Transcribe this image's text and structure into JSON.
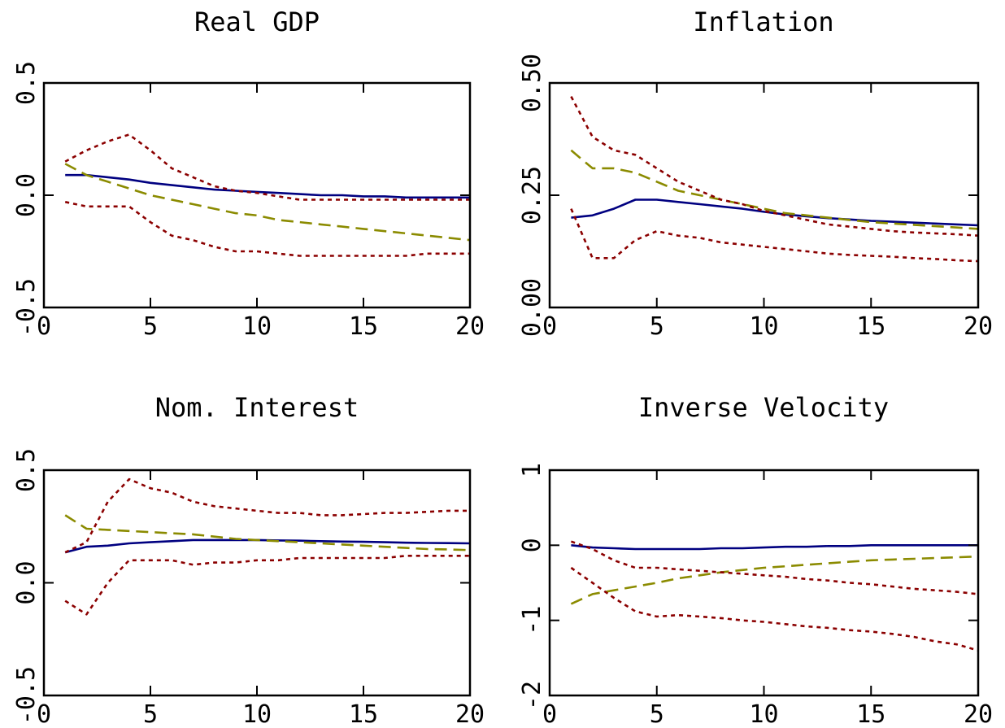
{
  "chart_data": [
    {
      "type": "line",
      "title": "Real GDP",
      "xlim": [
        0,
        20
      ],
      "ylim": [
        -0.5,
        0.5
      ],
      "xticks": [
        0,
        5,
        10,
        15,
        20
      ],
      "xtick_labels": [
        "0",
        "5",
        "10",
        "15",
        "20"
      ],
      "yticks": [
        -0.5,
        0.0,
        0.5
      ],
      "ytick_labels": [
        "-0.5",
        "0.0",
        "0.5"
      ],
      "x": [
        1,
        2,
        3,
        4,
        5,
        6,
        7,
        8,
        9,
        10,
        11,
        12,
        13,
        14,
        15,
        16,
        17,
        18,
        19,
        20
      ],
      "series": [
        {
          "values": [
            0.09,
            0.09,
            0.08,
            0.07,
            0.055,
            0.045,
            0.035,
            0.025,
            0.02,
            0.015,
            0.01,
            0.005,
            0.0,
            0.0,
            -0.005,
            -0.005,
            -0.01,
            -0.01,
            -0.01,
            -0.01
          ],
          "color": "#000080",
          "dash": "solid"
        },
        {
          "values": [
            0.14,
            0.09,
            0.06,
            0.03,
            0.0,
            -0.02,
            -0.04,
            -0.06,
            -0.08,
            -0.09,
            -0.11,
            -0.12,
            -0.13,
            -0.14,
            -0.15,
            -0.16,
            -0.17,
            -0.18,
            -0.19,
            -0.2
          ],
          "color": "#8B8B00",
          "dash": "long"
        },
        {
          "values": [
            0.15,
            0.2,
            0.24,
            0.27,
            0.2,
            0.12,
            0.08,
            0.04,
            0.02,
            0.01,
            -0.005,
            -0.02,
            -0.02,
            -0.02,
            -0.02,
            -0.02,
            -0.02,
            -0.02,
            -0.02,
            -0.02
          ],
          "color": "#8B0000",
          "dash": "short"
        },
        {
          "values": [
            -0.03,
            -0.05,
            -0.05,
            -0.05,
            -0.12,
            -0.18,
            -0.2,
            -0.23,
            -0.25,
            -0.25,
            -0.26,
            -0.27,
            -0.27,
            -0.27,
            -0.27,
            -0.27,
            -0.27,
            -0.26,
            -0.26,
            -0.26
          ],
          "color": "#8B0000",
          "dash": "short"
        }
      ]
    },
    {
      "type": "line",
      "title": "Inflation",
      "xlim": [
        0,
        20
      ],
      "ylim": [
        0.0,
        0.5
      ],
      "xticks": [
        0,
        5,
        10,
        15,
        20
      ],
      "xtick_labels": [
        "0",
        "5",
        "10",
        "15",
        "20"
      ],
      "yticks": [
        0.0,
        0.25,
        0.5
      ],
      "ytick_labels": [
        "0.00",
        "0.25",
        "0.50"
      ],
      "x": [
        1,
        2,
        3,
        4,
        5,
        6,
        7,
        8,
        9,
        10,
        11,
        12,
        13,
        14,
        15,
        16,
        17,
        18,
        19,
        20
      ],
      "series": [
        {
          "values": [
            0.2,
            0.205,
            0.22,
            0.24,
            0.24,
            0.235,
            0.23,
            0.225,
            0.22,
            0.213,
            0.207,
            0.203,
            0.199,
            0.196,
            0.193,
            0.191,
            0.189,
            0.187,
            0.185,
            0.183
          ],
          "color": "#000080",
          "dash": "solid"
        },
        {
          "values": [
            0.35,
            0.31,
            0.31,
            0.3,
            0.28,
            0.26,
            0.25,
            0.24,
            0.23,
            0.22,
            0.21,
            0.205,
            0.2,
            0.195,
            0.19,
            0.187,
            0.184,
            0.181,
            0.178,
            0.175
          ],
          "color": "#8B8B00",
          "dash": "long"
        },
        {
          "values": [
            0.47,
            0.38,
            0.35,
            0.34,
            0.31,
            0.28,
            0.26,
            0.24,
            0.23,
            0.215,
            0.205,
            0.195,
            0.185,
            0.18,
            0.175,
            0.17,
            0.167,
            0.165,
            0.163,
            0.16
          ],
          "color": "#8B0000",
          "dash": "short"
        },
        {
          "values": [
            0.22,
            0.11,
            0.11,
            0.15,
            0.17,
            0.16,
            0.155,
            0.145,
            0.14,
            0.135,
            0.13,
            0.125,
            0.12,
            0.117,
            0.115,
            0.113,
            0.11,
            0.108,
            0.105,
            0.103
          ],
          "color": "#8B0000",
          "dash": "short"
        }
      ]
    },
    {
      "type": "line",
      "title": "Nom. Interest",
      "xlim": [
        0,
        20
      ],
      "ylim": [
        -0.5,
        0.5
      ],
      "xticks": [
        0,
        5,
        10,
        15,
        20
      ],
      "xtick_labels": [
        "0",
        "5",
        "10",
        "15",
        "20"
      ],
      "yticks": [
        -0.5,
        0.0,
        0.5
      ],
      "ytick_labels": [
        "-0.5",
        "0.0",
        "0.5"
      ],
      "x": [
        1,
        2,
        3,
        4,
        5,
        6,
        7,
        8,
        9,
        10,
        11,
        12,
        13,
        14,
        15,
        16,
        17,
        18,
        19,
        20
      ],
      "series": [
        {
          "values": [
            0.135,
            0.16,
            0.165,
            0.175,
            0.18,
            0.185,
            0.19,
            0.19,
            0.19,
            0.19,
            0.188,
            0.187,
            0.185,
            0.183,
            0.182,
            0.18,
            0.178,
            0.177,
            0.176,
            0.175
          ],
          "color": "#000080",
          "dash": "solid"
        },
        {
          "values": [
            0.3,
            0.24,
            0.235,
            0.23,
            0.225,
            0.22,
            0.215,
            0.205,
            0.195,
            0.19,
            0.185,
            0.18,
            0.175,
            0.17,
            0.165,
            0.16,
            0.155,
            0.15,
            0.148,
            0.145
          ],
          "color": "#8B8B00",
          "dash": "long"
        },
        {
          "values": [
            0.135,
            0.18,
            0.36,
            0.46,
            0.42,
            0.4,
            0.36,
            0.34,
            0.33,
            0.32,
            0.31,
            0.31,
            0.3,
            0.3,
            0.305,
            0.31,
            0.31,
            0.315,
            0.32,
            0.32
          ],
          "color": "#8B0000",
          "dash": "short"
        },
        {
          "values": [
            -0.08,
            -0.14,
            0.0,
            0.1,
            0.1,
            0.1,
            0.08,
            0.09,
            0.09,
            0.1,
            0.1,
            0.11,
            0.11,
            0.11,
            0.11,
            0.11,
            0.12,
            0.12,
            0.12,
            0.12
          ],
          "color": "#8B0000",
          "dash": "short"
        }
      ]
    },
    {
      "type": "line",
      "title": "Inverse Velocity",
      "xlim": [
        0,
        20
      ],
      "ylim": [
        -2,
        1
      ],
      "xticks": [
        0,
        5,
        10,
        15,
        20
      ],
      "xtick_labels": [
        "0",
        "5",
        "10",
        "15",
        "20"
      ],
      "yticks": [
        -2,
        -1,
        0,
        1
      ],
      "ytick_labels": [
        "-2",
        "-1",
        "0",
        "1"
      ],
      "x": [
        1,
        2,
        3,
        4,
        5,
        6,
        7,
        8,
        9,
        10,
        11,
        12,
        13,
        14,
        15,
        16,
        17,
        18,
        19,
        20
      ],
      "series": [
        {
          "values": [
            0.0,
            -0.03,
            -0.04,
            -0.05,
            -0.05,
            -0.05,
            -0.05,
            -0.04,
            -0.04,
            -0.03,
            -0.02,
            -0.02,
            -0.01,
            -0.01,
            0.0,
            0.0,
            0.0,
            0.0,
            0.0,
            0.0
          ],
          "color": "#000080",
          "dash": "solid"
        },
        {
          "values": [
            -0.78,
            -0.65,
            -0.6,
            -0.55,
            -0.5,
            -0.44,
            -0.4,
            -0.36,
            -0.33,
            -0.3,
            -0.28,
            -0.26,
            -0.24,
            -0.22,
            -0.2,
            -0.19,
            -0.18,
            -0.17,
            -0.16,
            -0.15
          ],
          "color": "#8B8B00",
          "dash": "long"
        },
        {
          "values": [
            0.05,
            -0.05,
            -0.2,
            -0.3,
            -0.3,
            -0.32,
            -0.34,
            -0.36,
            -0.38,
            -0.4,
            -0.42,
            -0.45,
            -0.47,
            -0.5,
            -0.52,
            -0.55,
            -0.58,
            -0.6,
            -0.62,
            -0.65
          ],
          "color": "#8B0000",
          "dash": "short"
        },
        {
          "values": [
            -0.3,
            -0.5,
            -0.7,
            -0.88,
            -0.95,
            -0.93,
            -0.95,
            -0.97,
            -1.0,
            -1.02,
            -1.05,
            -1.08,
            -1.1,
            -1.13,
            -1.15,
            -1.18,
            -1.22,
            -1.28,
            -1.32,
            -1.4
          ],
          "color": "#8B0000",
          "dash": "short"
        }
      ]
    }
  ]
}
